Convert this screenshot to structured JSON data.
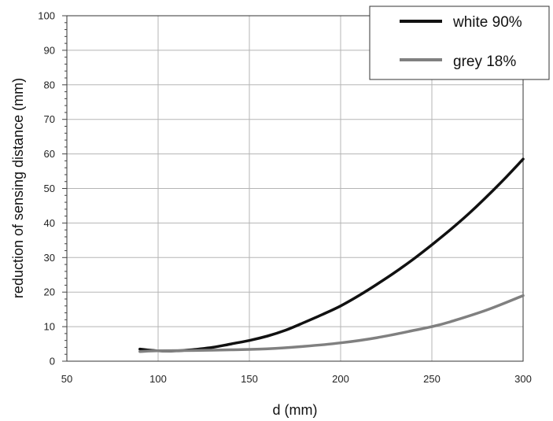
{
  "chart_data": {
    "type": "line",
    "xlabel": "d (mm)",
    "ylabel": "reduction of sensing distance (mm)",
    "xlim": [
      50,
      300
    ],
    "ylim": [
      0,
      100
    ],
    "x_ticks": [
      50,
      100,
      150,
      200,
      250,
      300
    ],
    "y_ticks": [
      0,
      10,
      20,
      30,
      40,
      50,
      60,
      70,
      80,
      90,
      100
    ],
    "grid": true,
    "legend_position": "top-right",
    "series": [
      {
        "name": "white 90%",
        "color": "#111111",
        "x": [
          90,
          100,
          110,
          120,
          130,
          140,
          150,
          160,
          170,
          180,
          190,
          200,
          210,
          220,
          230,
          240,
          250,
          260,
          270,
          280,
          290,
          300
        ],
        "y": [
          3.5,
          3.0,
          3.0,
          3.4,
          4.0,
          5.0,
          6.0,
          7.3,
          9.0,
          11.2,
          13.5,
          16.0,
          19.0,
          22.3,
          25.8,
          29.6,
          33.7,
          38.0,
          42.6,
          47.6,
          52.9,
          58.5
        ]
      },
      {
        "name": "grey 18%",
        "color": "#808080",
        "x": [
          90,
          100,
          120,
          140,
          160,
          180,
          200,
          220,
          240,
          250,
          260,
          280,
          300
        ],
        "y": [
          2.8,
          3.0,
          3.1,
          3.3,
          3.6,
          4.3,
          5.3,
          6.8,
          8.9,
          10.0,
          11.4,
          14.8,
          19.0
        ]
      }
    ]
  }
}
